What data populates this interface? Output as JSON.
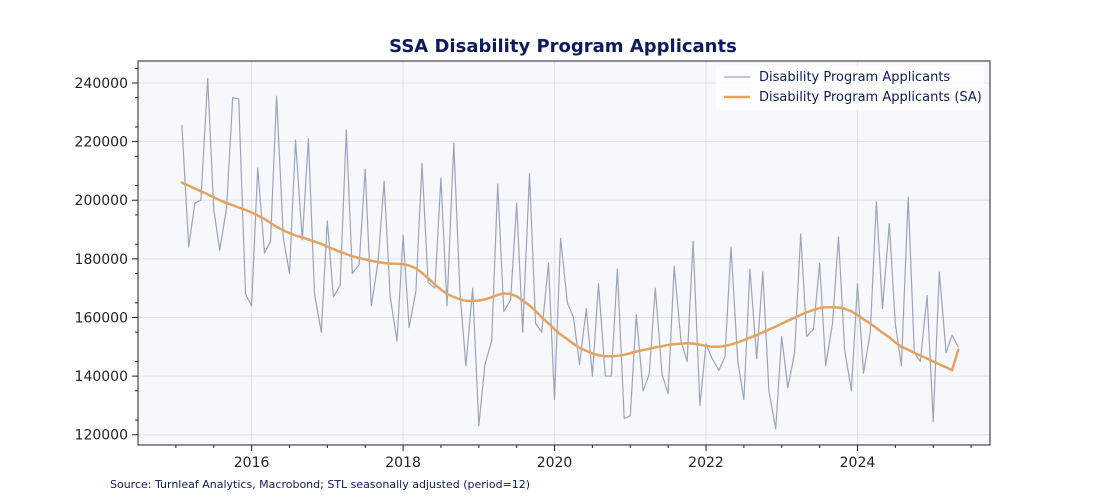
{
  "chart_data": {
    "type": "line",
    "title": "SSA Disability Program Applicants",
    "xlabel": "",
    "ylabel": "",
    "xlim": [
      2014.5,
      2025.75
    ],
    "ylim": [
      116500,
      247500
    ],
    "grid": true,
    "legend_position": "top-right",
    "x_ticks": [
      2016,
      2018,
      2020,
      2022,
      2024
    ],
    "x_tick_labels": [
      "2016",
      "2018",
      "2020",
      "2022",
      "2024"
    ],
    "y_ticks": [
      120000,
      140000,
      160000,
      180000,
      200000,
      220000,
      240000
    ],
    "y_tick_labels": [
      "120000",
      "140000",
      "160000",
      "180000",
      "200000",
      "220000",
      "240000"
    ],
    "x": [
      2015.08,
      2015.17,
      2015.25,
      2015.33,
      2015.42,
      2015.5,
      2015.58,
      2015.67,
      2015.75,
      2015.83,
      2015.92,
      2016.0,
      2016.08,
      2016.17,
      2016.25,
      2016.33,
      2016.42,
      2016.5,
      2016.58,
      2016.67,
      2016.75,
      2016.83,
      2016.92,
      2017.0,
      2017.08,
      2017.17,
      2017.25,
      2017.33,
      2017.42,
      2017.5,
      2017.58,
      2017.67,
      2017.75,
      2017.83,
      2017.92,
      2018.0,
      2018.08,
      2018.17,
      2018.25,
      2018.33,
      2018.42,
      2018.5,
      2018.58,
      2018.67,
      2018.75,
      2018.83,
      2018.92,
      2019.0,
      2019.08,
      2019.17,
      2019.25,
      2019.33,
      2019.42,
      2019.5,
      2019.58,
      2019.67,
      2019.75,
      2019.83,
      2019.92,
      2020.0,
      2020.08,
      2020.17,
      2020.25,
      2020.33,
      2020.42,
      2020.5,
      2020.58,
      2020.67,
      2020.75,
      2020.83,
      2020.92,
      2021.0,
      2021.08,
      2021.17,
      2021.25,
      2021.33,
      2021.42,
      2021.5,
      2021.58,
      2021.67,
      2021.75,
      2021.83,
      2021.92,
      2022.0,
      2022.08,
      2022.17,
      2022.25,
      2022.33,
      2022.42,
      2022.5,
      2022.58,
      2022.67,
      2022.75,
      2022.83,
      2022.92,
      2023.0,
      2023.08,
      2023.17,
      2023.25,
      2023.33,
      2023.42,
      2023.5,
      2023.58,
      2023.67,
      2023.75,
      2023.83,
      2023.92,
      2024.0,
      2024.08,
      2024.17,
      2024.25,
      2024.33,
      2024.42,
      2024.5,
      2024.58,
      2024.67,
      2024.75,
      2024.83,
      2024.92,
      2025.0,
      2025.08,
      2025.17,
      2025.25,
      2025.33
    ],
    "series": [
      {
        "name": "Disability Program Applicants",
        "color": "#9ca3bf",
        "values": [
          225500,
          184000,
          199000,
          200000,
          241500,
          197000,
          183000,
          197500,
          235000,
          234500,
          168000,
          164000,
          211000,
          182000,
          186000,
          235500,
          187000,
          175000,
          220500,
          186500,
          221000,
          168000,
          155000,
          193000,
          167000,
          171000,
          224000,
          175000,
          178000,
          210500,
          164000,
          179000,
          206500,
          167000,
          152000,
          188000,
          156500,
          169000,
          212500,
          172000,
          170000,
          207500,
          164000,
          219500,
          169000,
          143500,
          170000,
          123000,
          144000,
          152000,
          205500,
          162000,
          166000,
          199000,
          155000,
          209000,
          158000,
          155000,
          178500,
          132000,
          187000,
          165000,
          160000,
          144000,
          163000,
          140000,
          171500,
          140000,
          140000,
          176500,
          125500,
          126500,
          161000,
          135000,
          140500,
          170000,
          140500,
          134000,
          177500,
          152000,
          145000,
          186000,
          130000,
          151000,
          146000,
          142000,
          146500,
          184000,
          145000,
          132000,
          176500,
          146000,
          175500,
          135000,
          122000,
          153500,
          136000,
          148000,
          188500,
          153500,
          156000,
          178500,
          143500,
          158000,
          187500,
          149000,
          135000,
          171500,
          141000,
          155000,
          199500,
          163000,
          192000,
          158000,
          143500,
          201000,
          148000,
          145000,
          167500,
          124500,
          175500,
          148000,
          154000,
          150000
        ]
      },
      {
        "name": "Disability Program Applicants (SA)",
        "color": "#e3a460",
        "values": [
          206000,
          205000,
          204000,
          203000,
          202000,
          201000,
          200000,
          199000,
          198300,
          197500,
          196700,
          195800,
          194800,
          193600,
          192300,
          190900,
          189700,
          188800,
          188000,
          187300,
          186600,
          185900,
          185100,
          184200,
          183300,
          182400,
          181600,
          180900,
          180300,
          179800,
          179300,
          178900,
          178600,
          178400,
          178300,
          178200,
          177700,
          176800,
          175200,
          173400,
          171300,
          169500,
          168000,
          167000,
          166200,
          165700,
          165600,
          165800,
          166200,
          166900,
          167700,
          168200,
          168000,
          167200,
          165800,
          164100,
          162200,
          160100,
          158000,
          156000,
          154200,
          152600,
          151000,
          149700,
          148600,
          147700,
          147100,
          146800,
          146800,
          146900,
          147300,
          147800,
          148400,
          148900,
          149300,
          149800,
          150200,
          150600,
          150900,
          151100,
          151200,
          151100,
          150700,
          150300,
          150000,
          150000,
          150300,
          150800,
          151500,
          152300,
          153100,
          154000,
          154900,
          155900,
          156900,
          157900,
          158900,
          159900,
          160900,
          161800,
          162600,
          163200,
          163500,
          163500,
          163400,
          163000,
          162100,
          160800,
          159400,
          157900,
          156400,
          154800,
          153200,
          151500,
          150000,
          149000,
          148000,
          147000,
          146000,
          145000,
          144000,
          143000,
          142000,
          149000
        ]
      }
    ],
    "source_note": "Source: Turnleaf Analytics, Macrobond; STL seasonally adjusted (period=12)"
  }
}
